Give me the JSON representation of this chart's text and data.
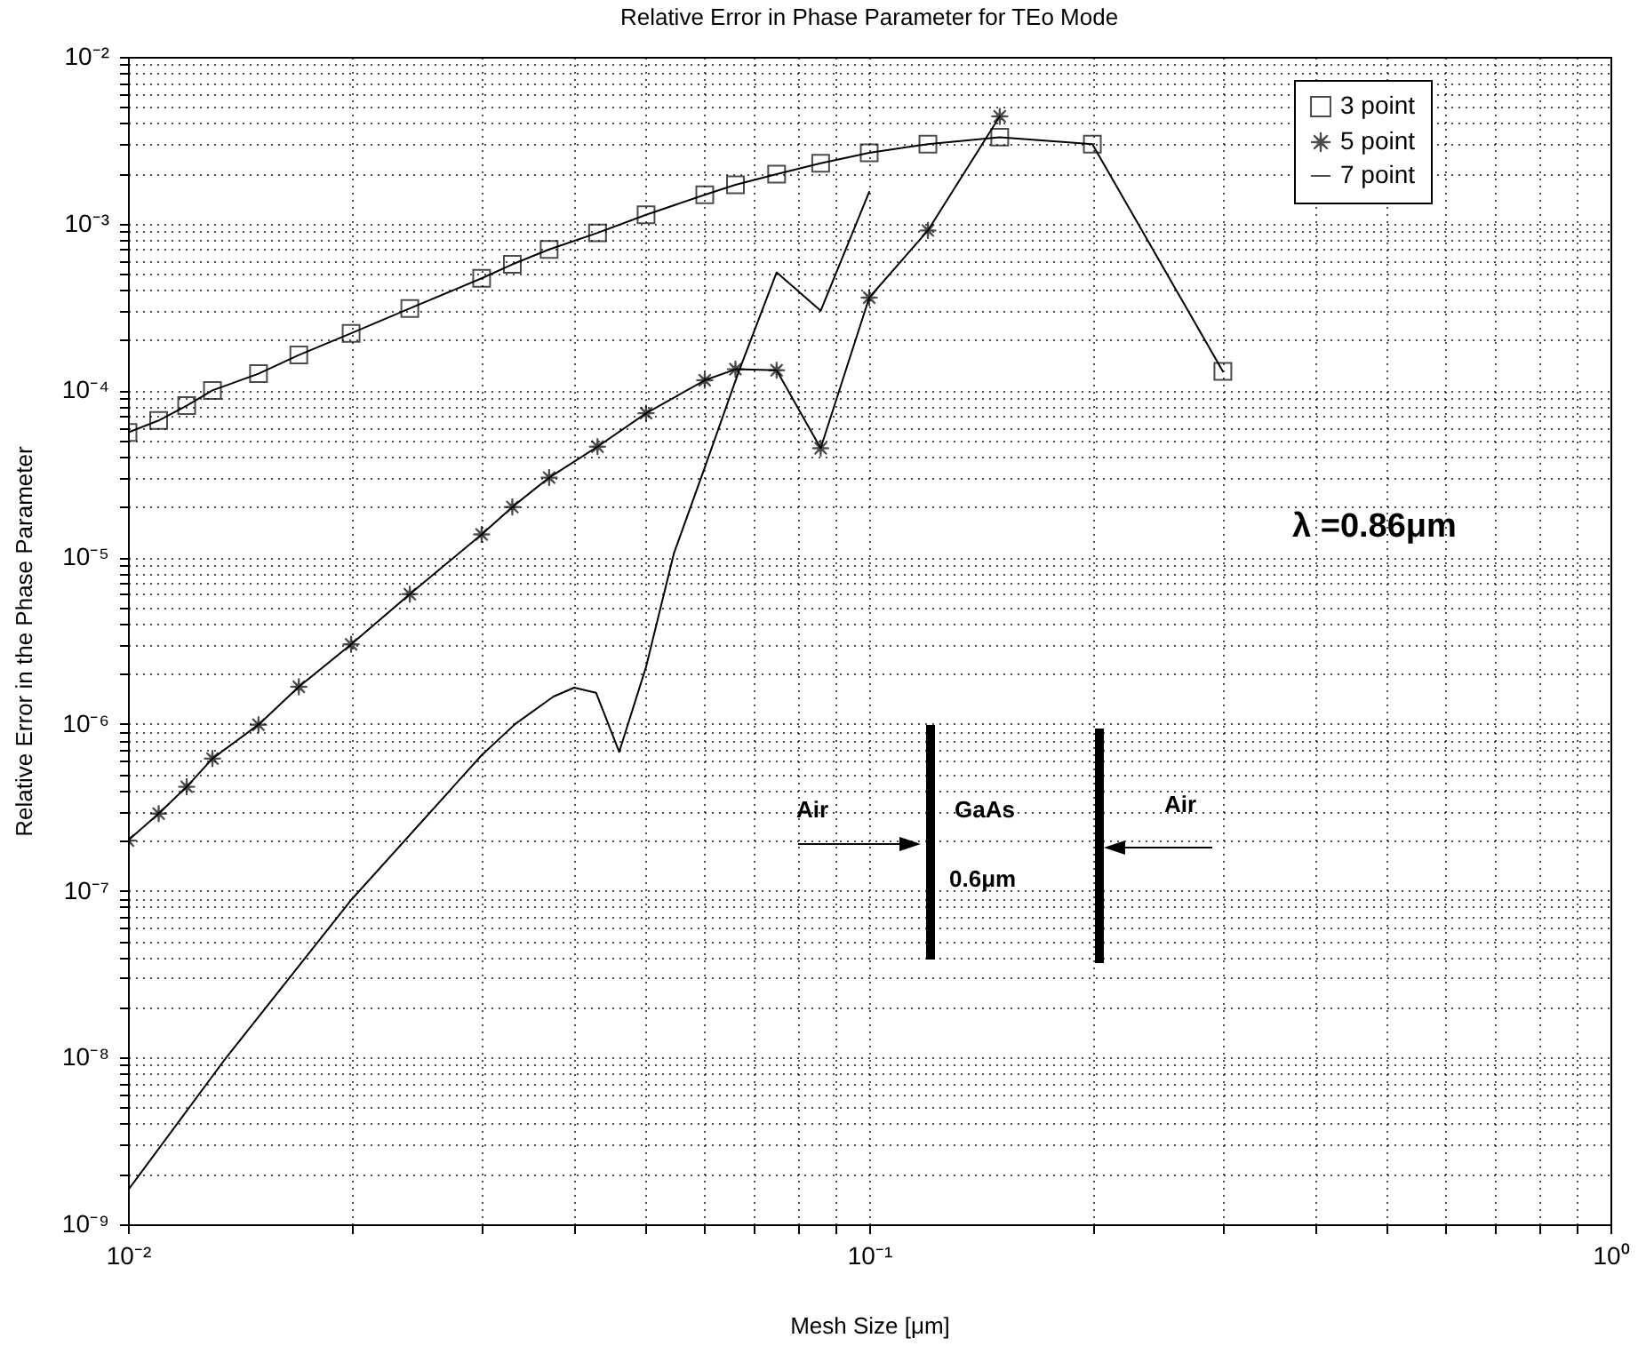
{
  "chart_data": {
    "type": "line",
    "title": "Relative Error in Phase Parameter for TEo Mode",
    "xlabel": "Mesh Size [μm]",
    "ylabel": "Relative Error in the Phase Parameter",
    "log": "xy",
    "grid": true,
    "legend": "top right",
    "line_style": "solid",
    "xlim": [
      0.01,
      1
    ],
    "ylim": [
      1e-09,
      0.01
    ],
    "xticks": [
      {
        "value": 0.01,
        "label": "10⁻²"
      },
      {
        "value": 0.02,
        "label": null
      },
      {
        "value": 0.03,
        "label": null
      },
      {
        "value": 0.04,
        "label": null
      },
      {
        "value": 0.05,
        "label": null
      },
      {
        "value": 0.06,
        "label": null
      },
      {
        "value": 0.07,
        "label": null
      },
      {
        "value": 0.08,
        "label": null
      },
      {
        "value": 0.09,
        "label": null
      },
      {
        "value": 0.1,
        "label": "10⁻¹"
      },
      {
        "value": 0.2,
        "label": null
      },
      {
        "value": 0.3,
        "label": null
      },
      {
        "value": 0.4,
        "label": null
      },
      {
        "value": 0.5,
        "label": null
      },
      {
        "value": 0.6,
        "label": null
      },
      {
        "value": 0.7,
        "label": null
      },
      {
        "value": 0.8,
        "label": null
      },
      {
        "value": 0.9,
        "label": null
      },
      {
        "value": 1,
        "label": "10⁰"
      }
    ],
    "yticks": [
      {
        "value": 1e-09,
        "label": "10⁻⁹"
      },
      {
        "value": 2e-09,
        "label": null
      },
      {
        "value": 3e-09,
        "label": null
      },
      {
        "value": 4e-09,
        "label": null
      },
      {
        "value": 5e-09,
        "label": null
      },
      {
        "value": 6e-09,
        "label": null
      },
      {
        "value": 7e-09,
        "label": null
      },
      {
        "value": 8e-09,
        "label": null
      },
      {
        "value": 9e-09,
        "label": null
      },
      {
        "value": 1e-08,
        "label": "10⁻⁸"
      },
      {
        "value": 2e-08,
        "label": null
      },
      {
        "value": 3e-08,
        "label": null
      },
      {
        "value": 4e-08,
        "label": null
      },
      {
        "value": 5e-08,
        "label": null
      },
      {
        "value": 6e-08,
        "label": null
      },
      {
        "value": 7e-08,
        "label": null
      },
      {
        "value": 8e-08,
        "label": null
      },
      {
        "value": 9e-08,
        "label": null
      },
      {
        "value": 1e-07,
        "label": "10⁻⁷"
      },
      {
        "value": 2e-07,
        "label": null
      },
      {
        "value": 3e-07,
        "label": null
      },
      {
        "value": 4e-07,
        "label": null
      },
      {
        "value": 5e-07,
        "label": null
      },
      {
        "value": 6e-07,
        "label": null
      },
      {
        "value": 7e-07,
        "label": null
      },
      {
        "value": 8e-07,
        "label": null
      },
      {
        "value": 9e-07,
        "label": null
      },
      {
        "value": 1e-06,
        "label": "10⁻⁶"
      },
      {
        "value": 2e-06,
        "label": null
      },
      {
        "value": 3e-06,
        "label": null
      },
      {
        "value": 4e-06,
        "label": null
      },
      {
        "value": 5e-06,
        "label": null
      },
      {
        "value": 6e-06,
        "label": null
      },
      {
        "value": 7e-06,
        "label": null
      },
      {
        "value": 8e-06,
        "label": null
      },
      {
        "value": 9e-06,
        "label": null
      },
      {
        "value": 1e-05,
        "label": "10⁻⁵"
      },
      {
        "value": 2e-05,
        "label": null
      },
      {
        "value": 3e-05,
        "label": null
      },
      {
        "value": 4e-05,
        "label": null
      },
      {
        "value": 5e-05,
        "label": null
      },
      {
        "value": 6e-05,
        "label": null
      },
      {
        "value": 7e-05,
        "label": null
      },
      {
        "value": 8e-05,
        "label": null
      },
      {
        "value": 9e-05,
        "label": null
      },
      {
        "value": 0.0001,
        "label": "10⁻⁴"
      },
      {
        "value": 0.0002,
        "label": null
      },
      {
        "value": 0.0003,
        "label": null
      },
      {
        "value": 0.0004,
        "label": null
      },
      {
        "value": 0.0005,
        "label": null
      },
      {
        "value": 0.0006,
        "label": null
      },
      {
        "value": 0.0007,
        "label": null
      },
      {
        "value": 0.0008,
        "label": null
      },
      {
        "value": 0.0009,
        "label": null
      },
      {
        "value": 0.001,
        "label": "10⁻³"
      },
      {
        "value": 0.002,
        "label": null
      },
      {
        "value": 0.003,
        "label": null
      },
      {
        "value": 0.004,
        "label": null
      },
      {
        "value": 0.005,
        "label": null
      },
      {
        "value": 0.006,
        "label": null
      },
      {
        "value": 0.007,
        "label": null
      },
      {
        "value": 0.008,
        "label": null
      },
      {
        "value": 0.009,
        "label": null
      },
      {
        "value": 0.01,
        "label": "10⁻²"
      }
    ],
    "series": [
      {
        "name": "3 point",
        "color": "#000000",
        "marker": "square",
        "x": [
          0.01,
          0.011,
          0.012,
          0.013,
          0.015,
          0.017,
          0.02,
          0.024,
          0.03,
          0.033,
          0.037,
          0.043,
          0.05,
          0.06,
          0.066,
          0.075,
          0.086,
          0.1,
          0.12,
          0.15,
          0.2,
          0.3
        ],
        "values": [
          5.6e-05,
          6.6e-05,
          8.1e-05,
          0.0001,
          0.000126,
          0.000163,
          0.00022,
          0.00031,
          0.00047,
          0.00057,
          0.0007,
          0.00088,
          0.00113,
          0.00149,
          0.00171,
          0.00198,
          0.0023,
          0.00266,
          0.003,
          0.0033,
          0.003,
          0.00013
        ]
      },
      {
        "name": "5 point",
        "color": "#000000",
        "marker": "star",
        "x": [
          0.01,
          0.011,
          0.012,
          0.013,
          0.015,
          0.017,
          0.02,
          0.024,
          0.03,
          0.033,
          0.037,
          0.043,
          0.05,
          0.06,
          0.066,
          0.075,
          0.086,
          0.1,
          0.12,
          0.15
        ],
        "values": [
          2e-07,
          2.9e-07,
          4.2e-07,
          6.2e-07,
          9.9e-07,
          1.67e-06,
          3e-06,
          6e-06,
          1.37e-05,
          2e-05,
          3e-05,
          4.6e-05,
          7.3e-05,
          0.000115,
          0.000134,
          0.000132,
          4.5e-05,
          0.00036,
          0.00091,
          0.0044
        ]
      },
      {
        "name": "7 point",
        "color": "#000000",
        "marker": "none",
        "x": [
          0.01,
          0.0135,
          0.02,
          0.03,
          0.0333,
          0.0375,
          0.04,
          0.0428,
          0.046,
          0.05,
          0.0545,
          0.06,
          0.0666,
          0.075,
          0.086,
          0.1
        ],
        "values": [
          1.6e-09,
          9.7e-09,
          8.8e-08,
          6.5e-07,
          1e-06,
          1.46e-06,
          1.65e-06,
          1.54e-06,
          6.8e-07,
          2.2e-06,
          1.05e-05,
          3.45e-05,
          0.000128,
          0.00051,
          0.0003,
          0.00155
        ]
      }
    ],
    "annotations": [
      "λ =0.86μm",
      "Air",
      "GaAs",
      "0.6μm",
      "Air"
    ]
  }
}
